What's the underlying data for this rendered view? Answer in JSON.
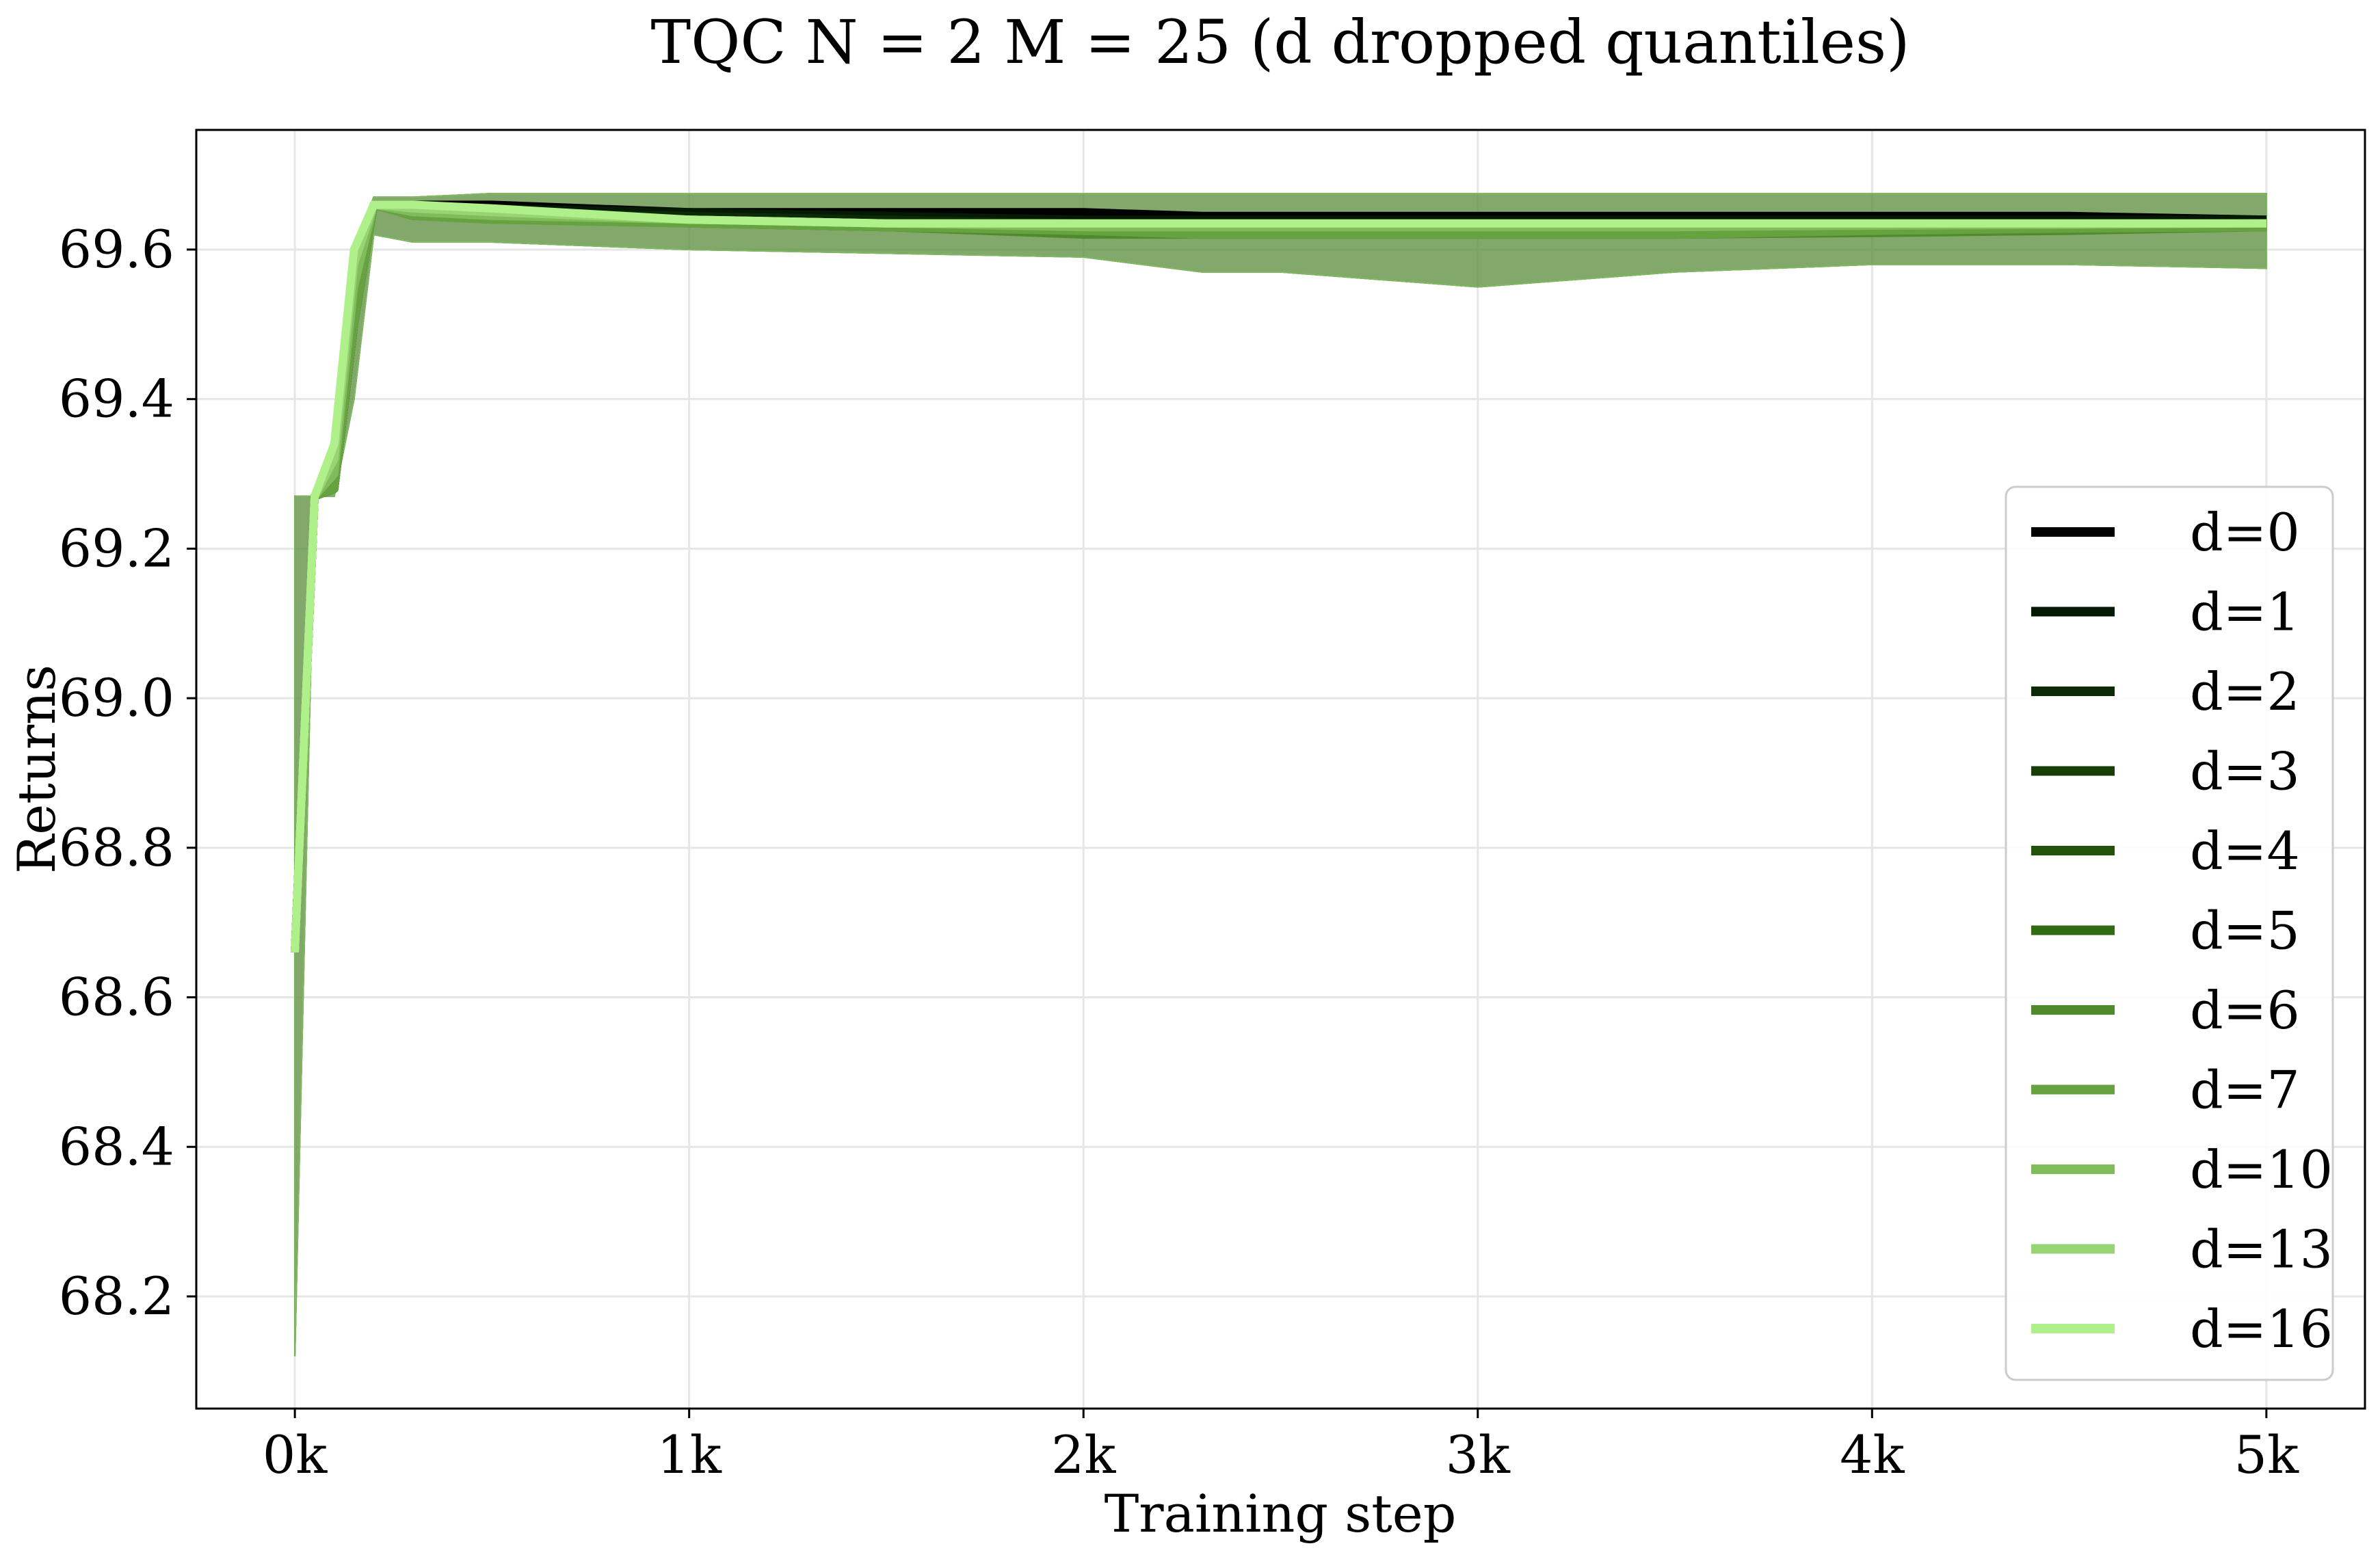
{
  "chart_data": {
    "type": "line",
    "title": "TQC N = 2 M = 25 (d dropped quantiles)",
    "xlabel": "Training step",
    "ylabel": "Returns",
    "xlim": [
      -250,
      5250
    ],
    "ylim": [
      68.05,
      69.76
    ],
    "x_ticks": [
      0,
      1000,
      2000,
      3000,
      4000,
      5000
    ],
    "x_tick_labels": [
      "0k",
      "1k",
      "2k",
      "3k",
      "4k",
      "5k"
    ],
    "y_ticks": [
      68.2,
      68.4,
      68.6,
      68.8,
      69.0,
      69.2,
      69.4,
      69.6
    ],
    "y_tick_labels": [
      "68.2",
      "68.4",
      "68.6",
      "68.8",
      "69.0",
      "69.2",
      "69.4",
      "69.6"
    ],
    "grid": true,
    "legend_position": "lower-right",
    "x": [
      0,
      50,
      100,
      150,
      200,
      300,
      500,
      1000,
      1500,
      2000,
      2300,
      2500,
      3000,
      3500,
      4000,
      4500,
      5000
    ],
    "series": [
      {
        "name": "d=0",
        "color": "#000000",
        "mean": [
          68.66,
          69.27,
          69.28,
          69.5,
          69.66,
          69.66,
          69.66,
          69.65,
          69.65,
          69.65,
          69.645,
          69.645,
          69.645,
          69.645,
          69.645,
          69.645,
          69.64
        ],
        "lower": [
          68.12,
          69.27,
          69.27,
          69.4,
          69.62,
          69.61,
          69.61,
          69.6,
          69.595,
          69.59,
          69.57,
          69.57,
          69.55,
          69.57,
          69.58,
          69.58,
          69.575
        ],
        "upper": [
          69.27,
          69.27,
          69.35,
          69.6,
          69.67,
          69.67,
          69.675,
          69.675,
          69.675,
          69.675,
          69.675,
          69.675,
          69.675,
          69.675,
          69.675,
          69.675,
          69.675
        ]
      },
      {
        "name": "d=1",
        "color": "#041a04",
        "mean": [
          68.66,
          69.27,
          69.28,
          69.5,
          69.66,
          69.655,
          69.655,
          69.65,
          69.645,
          69.64,
          69.64,
          69.64,
          69.64,
          69.64,
          69.64,
          69.64,
          69.64
        ],
        "lower": [
          68.12,
          69.27,
          69.27,
          69.4,
          69.62,
          69.61,
          69.61,
          69.6,
          69.595,
          69.59,
          69.57,
          69.57,
          69.55,
          69.57,
          69.58,
          69.58,
          69.575
        ],
        "upper": [
          69.27,
          69.27,
          69.35,
          69.6,
          69.67,
          69.67,
          69.675,
          69.675,
          69.675,
          69.675,
          69.675,
          69.675,
          69.675,
          69.675,
          69.675,
          69.675,
          69.675
        ]
      },
      {
        "name": "d=2",
        "color": "#0c2a06",
        "mean": [
          68.66,
          69.27,
          69.28,
          69.5,
          69.66,
          69.655,
          69.65,
          69.645,
          69.64,
          69.635,
          69.635,
          69.635,
          69.635,
          69.635,
          69.635,
          69.635,
          69.635
        ],
        "lower": [
          68.12,
          69.27,
          69.27,
          69.4,
          69.62,
          69.61,
          69.61,
          69.6,
          69.595,
          69.59,
          69.57,
          69.57,
          69.55,
          69.57,
          69.58,
          69.58,
          69.575
        ],
        "upper": [
          69.27,
          69.27,
          69.35,
          69.6,
          69.67,
          69.67,
          69.675,
          69.675,
          69.675,
          69.675,
          69.675,
          69.675,
          69.675,
          69.675,
          69.675,
          69.675,
          69.675
        ]
      },
      {
        "name": "d=3",
        "color": "#173d08",
        "mean": [
          68.66,
          69.27,
          69.28,
          69.5,
          69.66,
          69.65,
          69.65,
          69.64,
          69.635,
          69.63,
          69.63,
          69.63,
          69.63,
          69.63,
          69.63,
          69.632,
          69.633
        ],
        "lower": [
          68.12,
          69.27,
          69.27,
          69.4,
          69.62,
          69.61,
          69.61,
          69.6,
          69.595,
          69.59,
          69.57,
          69.57,
          69.55,
          69.57,
          69.58,
          69.58,
          69.575
        ],
        "upper": [
          69.27,
          69.27,
          69.35,
          69.6,
          69.67,
          69.67,
          69.675,
          69.675,
          69.675,
          69.675,
          69.675,
          69.675,
          69.675,
          69.675,
          69.675,
          69.675,
          69.675
        ]
      },
      {
        "name": "d=4",
        "color": "#22520c",
        "mean": [
          68.66,
          69.27,
          69.28,
          69.5,
          69.66,
          69.65,
          69.645,
          69.64,
          69.63,
          69.625,
          69.625,
          69.625,
          69.625,
          69.625,
          69.628,
          69.63,
          69.632
        ],
        "lower": [
          68.12,
          69.27,
          69.27,
          69.4,
          69.62,
          69.61,
          69.61,
          69.6,
          69.595,
          69.59,
          69.57,
          69.57,
          69.55,
          69.57,
          69.58,
          69.58,
          69.575
        ],
        "upper": [
          69.27,
          69.27,
          69.35,
          69.6,
          69.67,
          69.67,
          69.675,
          69.675,
          69.675,
          69.675,
          69.675,
          69.675,
          69.675,
          69.675,
          69.675,
          69.675,
          69.675
        ]
      },
      {
        "name": "d=5",
        "color": "#336a14",
        "mean": [
          68.66,
          69.27,
          69.28,
          69.5,
          69.66,
          69.645,
          69.645,
          69.635,
          69.63,
          69.625,
          69.62,
          69.62,
          69.62,
          69.62,
          69.625,
          69.628,
          69.63
        ],
        "lower": [
          68.12,
          69.27,
          69.27,
          69.4,
          69.62,
          69.61,
          69.61,
          69.6,
          69.595,
          69.59,
          69.57,
          69.57,
          69.55,
          69.57,
          69.58,
          69.58,
          69.575
        ],
        "upper": [
          69.27,
          69.27,
          69.35,
          69.6,
          69.67,
          69.67,
          69.675,
          69.675,
          69.675,
          69.675,
          69.675,
          69.675,
          69.675,
          69.675,
          69.675,
          69.675,
          69.675
        ]
      },
      {
        "name": "d=6",
        "color": "#4f8a2c",
        "mean": [
          68.66,
          69.27,
          69.28,
          69.5,
          69.66,
          69.645,
          69.64,
          69.635,
          69.63,
          69.62,
          69.62,
          69.62,
          69.62,
          69.62,
          69.622,
          69.625,
          69.63
        ],
        "lower": [
          68.12,
          69.27,
          69.27,
          69.4,
          69.62,
          69.61,
          69.61,
          69.6,
          69.595,
          69.59,
          69.57,
          69.57,
          69.55,
          69.57,
          69.58,
          69.58,
          69.575
        ],
        "upper": [
          69.27,
          69.27,
          69.35,
          69.6,
          69.67,
          69.67,
          69.675,
          69.675,
          69.675,
          69.675,
          69.675,
          69.675,
          69.675,
          69.675,
          69.675,
          69.675,
          69.675
        ]
      },
      {
        "name": "d=7",
        "color": "#66a340",
        "mean": [
          68.66,
          69.27,
          69.28,
          69.5,
          69.66,
          69.645,
          69.64,
          69.635,
          69.63,
          69.625,
          69.62,
          69.62,
          69.62,
          69.62,
          69.625,
          69.628,
          69.63
        ],
        "lower": [
          68.12,
          69.27,
          69.27,
          69.4,
          69.62,
          69.61,
          69.61,
          69.6,
          69.595,
          69.59,
          69.57,
          69.57,
          69.55,
          69.57,
          69.58,
          69.58,
          69.575
        ],
        "upper": [
          69.27,
          69.27,
          69.35,
          69.6,
          69.67,
          69.67,
          69.675,
          69.675,
          69.675,
          69.675,
          69.675,
          69.675,
          69.675,
          69.675,
          69.675,
          69.675,
          69.675
        ]
      },
      {
        "name": "d=10",
        "color": "#80bb5c",
        "mean": [
          68.66,
          69.27,
          69.3,
          69.55,
          69.66,
          69.65,
          69.645,
          69.64,
          69.635,
          69.63,
          69.63,
          69.63,
          69.63,
          69.63,
          69.632,
          69.633,
          69.635
        ],
        "lower": [
          68.12,
          69.27,
          69.27,
          69.4,
          69.62,
          69.61,
          69.61,
          69.6,
          69.595,
          69.59,
          69.57,
          69.57,
          69.55,
          69.57,
          69.58,
          69.58,
          69.575
        ],
        "upper": [
          69.27,
          69.27,
          69.35,
          69.6,
          69.67,
          69.67,
          69.675,
          69.675,
          69.675,
          69.675,
          69.675,
          69.675,
          69.675,
          69.675,
          69.675,
          69.675,
          69.675
        ]
      },
      {
        "name": "d=13",
        "color": "#99d474",
        "mean": [
          68.66,
          69.27,
          69.32,
          69.58,
          69.66,
          69.655,
          69.65,
          69.64,
          69.635,
          69.635,
          69.635,
          69.635,
          69.635,
          69.635,
          69.635,
          69.635,
          69.635
        ],
        "lower": [
          68.12,
          69.27,
          69.27,
          69.4,
          69.62,
          69.61,
          69.61,
          69.6,
          69.595,
          69.59,
          69.57,
          69.57,
          69.55,
          69.57,
          69.58,
          69.58,
          69.575
        ],
        "upper": [
          69.27,
          69.27,
          69.35,
          69.6,
          69.67,
          69.67,
          69.675,
          69.675,
          69.675,
          69.675,
          69.675,
          69.675,
          69.675,
          69.675,
          69.675,
          69.675,
          69.675
        ]
      },
      {
        "name": "d=16",
        "color": "#aff08b",
        "mean": [
          68.66,
          69.27,
          69.34,
          69.6,
          69.66,
          69.66,
          69.655,
          69.64,
          69.635,
          69.635,
          69.635,
          69.635,
          69.635,
          69.635,
          69.635,
          69.635,
          69.635
        ],
        "lower": [
          68.12,
          69.27,
          69.27,
          69.4,
          69.62,
          69.61,
          69.61,
          69.6,
          69.595,
          69.59,
          69.57,
          69.57,
          69.55,
          69.57,
          69.58,
          69.58,
          69.575
        ],
        "upper": [
          69.27,
          69.27,
          69.35,
          69.6,
          69.67,
          69.67,
          69.675,
          69.675,
          69.675,
          69.675,
          69.675,
          69.675,
          69.675,
          69.675,
          69.675,
          69.675,
          69.675
        ]
      }
    ]
  }
}
